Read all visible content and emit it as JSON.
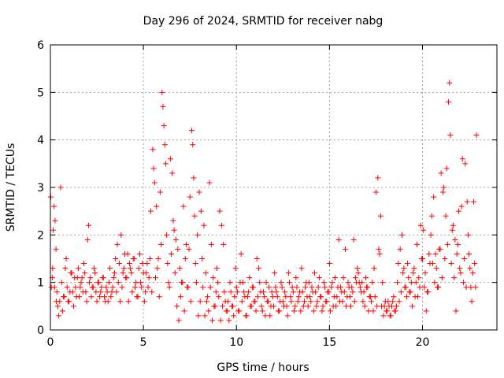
{
  "chart_data": {
    "type": "scatter",
    "title": "Day 296 of 2024, SRMTID for receiver nabg",
    "xlabel": "GPS time / hours",
    "ylabel": "SRMTID / TECUs",
    "xlim": [
      0,
      24
    ],
    "ylim": [
      0,
      6
    ],
    "xticks": [
      0,
      5,
      10,
      15,
      20
    ],
    "yticks": [
      0,
      1,
      2,
      3,
      4,
      5,
      6
    ],
    "grid": true,
    "marker": "+",
    "color": "#ff0000",
    "series": [
      {
        "name": "SRMTID",
        "x": [
          0.05,
          0.1,
          0.15,
          0.2,
          0.25,
          0.3,
          0.35,
          0.4,
          0.5,
          0.6,
          0.7,
          0.8,
          0.9,
          1.0,
          1.1,
          1.2,
          1.3,
          1.4,
          1.5,
          1.6,
          1.7,
          1.8,
          1.9,
          2.0,
          2.05,
          2.1,
          2.2,
          2.3,
          2.4,
          2.5,
          2.6,
          2.7,
          2.8,
          2.9,
          3.0,
          3.1,
          3.2,
          3.3,
          3.4,
          3.5,
          3.6,
          3.7,
          3.8,
          3.9,
          4.0,
          4.1,
          4.2,
          4.3,
          4.4,
          4.5,
          4.6,
          4.7,
          4.8,
          4.9,
          5.0,
          5.1,
          5.2,
          5.3,
          5.4,
          5.5,
          5.55,
          5.6,
          5.7,
          5.8,
          5.9,
          6.0,
          6.05,
          6.1,
          6.15,
          6.2,
          6.25,
          6.3,
          6.4,
          6.5,
          6.6,
          6.7,
          6.8,
          6.9,
          7.0,
          7.1,
          7.2,
          7.3,
          7.4,
          7.5,
          7.6,
          7.65,
          7.7,
          7.75,
          7.8,
          7.9,
          8.0,
          8.1,
          8.2,
          8.3,
          8.4,
          8.5,
          8.6,
          8.7,
          8.8,
          8.9,
          9.0,
          9.1,
          9.2,
          9.3,
          9.4,
          9.5,
          9.6,
          9.7,
          9.8,
          9.9,
          10.0,
          10.1,
          10.2,
          10.3,
          10.4,
          10.5,
          10.6,
          10.7,
          10.8,
          10.9,
          11.0,
          11.1,
          11.2,
          11.3,
          11.4,
          11.5,
          11.6,
          11.7,
          11.8,
          11.9,
          12.0,
          12.1,
          12.2,
          12.3,
          12.4,
          12.5,
          12.6,
          12.7,
          12.8,
          12.9,
          13.0,
          13.1,
          13.2,
          13.3,
          13.4,
          13.5,
          13.6,
          13.7,
          13.8,
          13.9,
          14.0,
          14.1,
          14.2,
          14.3,
          14.4,
          14.5,
          14.6,
          14.7,
          14.8,
          14.9,
          15.0,
          15.1,
          15.2,
          15.3,
          15.4,
          15.5,
          15.6,
          15.7,
          15.8,
          15.9,
          16.0,
          16.1,
          16.2,
          16.3,
          16.4,
          16.5,
          16.6,
          16.7,
          16.8,
          16.9,
          17.0,
          17.1,
          17.2,
          17.3,
          17.4,
          17.5,
          17.6,
          17.7,
          17.8,
          17.9,
          18.0,
          18.1,
          18.2,
          18.3,
          18.4,
          18.5,
          18.6,
          18.7,
          18.8,
          18.9,
          19.0,
          19.1,
          19.2,
          19.3,
          19.4,
          19.5,
          19.6,
          19.7,
          19.8,
          19.9,
          20.0,
          20.1,
          20.2,
          20.3,
          20.4,
          20.5,
          20.6,
          20.7,
          20.8,
          20.9,
          21.0,
          21.1,
          21.2,
          21.3,
          21.4,
          21.45,
          21.5,
          21.6,
          21.7,
          21.8,
          21.9,
          22.0,
          22.1,
          22.2,
          22.3,
          22.4,
          22.5,
          22.6,
          22.7,
          22.8,
          22.9,
          0.02,
          0.12,
          0.22,
          0.32,
          0.45,
          0.55,
          0.65,
          0.75,
          0.85,
          0.95,
          1.05,
          1.15,
          1.25,
          1.35,
          1.45,
          1.55,
          1.65,
          1.75,
          1.85,
          1.95,
          2.15,
          2.25,
          2.35,
          2.45,
          2.55,
          2.65,
          2.75,
          2.85,
          2.95,
          3.05,
          3.15,
          3.25,
          3.35,
          3.45,
          3.55,
          3.65,
          3.75,
          3.85,
          3.95,
          4.05,
          4.15,
          4.25,
          4.35,
          4.45,
          4.55,
          4.65,
          4.75,
          4.85,
          4.95,
          5.05,
          5.15,
          5.25,
          5.35,
          5.45,
          5.65,
          5.75,
          5.85,
          5.95,
          6.35,
          6.45,
          6.55,
          6.65,
          6.75,
          6.85,
          6.95,
          7.05,
          7.15,
          7.25,
          7.35,
          7.45,
          7.55,
          7.85,
          7.95,
          8.05,
          8.15,
          8.25,
          8.35,
          8.45,
          8.55,
          8.65,
          8.75,
          8.85,
          8.95,
          9.05,
          9.15,
          9.25,
          9.35,
          9.45,
          9.55,
          9.65,
          9.75,
          9.85,
          9.95,
          10.05,
          10.15,
          10.25,
          10.35,
          10.45,
          10.55,
          10.65,
          10.75,
          10.85,
          10.95,
          11.05,
          11.15,
          11.25,
          11.35,
          11.45,
          11.55,
          11.65,
          11.75,
          11.85,
          11.95,
          12.05,
          12.15,
          12.25,
          12.35,
          12.45,
          12.55,
          12.65,
          12.75,
          12.85,
          12.95,
          13.05,
          13.15,
          13.25,
          13.35,
          13.45,
          13.55,
          13.65,
          13.75,
          13.85,
          13.95,
          14.05,
          14.15,
          14.25,
          14.35,
          14.45,
          14.55,
          14.65,
          14.75,
          14.85,
          14.95,
          15.05,
          15.15,
          15.25,
          15.35,
          15.45,
          15.55,
          15.65,
          15.75,
          15.85,
          15.95,
          16.05,
          16.15,
          16.25,
          16.35,
          16.45,
          16.55,
          16.65,
          16.75,
          16.85,
          16.95,
          17.05,
          17.15,
          17.25,
          17.35,
          17.45,
          17.55,
          17.65,
          17.75,
          17.85,
          17.95,
          18.05,
          18.15,
          18.25,
          18.35,
          18.45,
          18.55,
          18.65,
          18.75,
          18.85,
          18.95,
          19.05,
          19.15,
          19.25,
          19.35,
          19.45,
          19.55,
          19.65,
          19.75,
          19.85,
          19.95,
          20.05,
          20.15,
          20.25,
          20.35,
          20.45,
          20.55,
          20.65,
          20.75,
          20.85,
          20.95,
          21.05,
          21.15,
          21.25,
          21.35,
          21.55,
          21.65,
          21.75,
          21.85,
          21.95,
          22.05,
          22.15,
          22.25,
          22.35,
          22.45,
          22.55,
          22.65,
          22.75,
          22.85
        ],
        "y": [
          0.9,
          1.1,
          2.1,
          2.6,
          2.3,
          1.7,
          0.8,
          0.5,
          0.6,
          1.0,
          0.7,
          1.3,
          0.9,
          0.6,
          1.2,
          0.8,
          1.1,
          0.7,
          1.3,
          0.9,
          1.1,
          1.4,
          0.8,
          1.9,
          2.2,
          1.0,
          0.7,
          0.9,
          1.2,
          0.6,
          1.0,
          0.8,
          1.1,
          0.7,
          0.9,
          0.6,
          1.3,
          0.8,
          1.1,
          1.5,
          1.8,
          1.4,
          2.0,
          1.2,
          1.6,
          1.1,
          0.6,
          1.3,
          0.8,
          1.5,
          1.0,
          0.7,
          1.6,
          0.9,
          1.2,
          0.8,
          1.4,
          1.1,
          2.5,
          3.8,
          3.4,
          3.1,
          2.6,
          1.5,
          2.9,
          5.0,
          4.7,
          4.3,
          3.9,
          3.5,
          2.0,
          1.4,
          0.9,
          1.6,
          2.3,
          1.2,
          0.5,
          0.2,
          0.7,
          1.0,
          0.4,
          1.8,
          0.9,
          2.8,
          4.2,
          3.9,
          3.2,
          2.4,
          1.4,
          2.0,
          2.9,
          2.5,
          0.9,
          0.3,
          0.6,
          0.4,
          0.9,
          0.2,
          0.5,
          0.8,
          1.0,
          2.5,
          2.2,
          1.8,
          0.6,
          0.4,
          0.2,
          0.8,
          0.5,
          0.7,
          0.9,
          0.4,
          1.0,
          0.6,
          0.8,
          0.3,
          0.7,
          1.1,
          0.5,
          0.9,
          0.6,
          1.5,
          1.3,
          0.8,
          0.4,
          0.7,
          1.0,
          0.6,
          0.3,
          0.8,
          0.5,
          0.9,
          0.7,
          0.4,
          1.0,
          0.6,
          0.8,
          0.5,
          1.2,
          0.7,
          0.9,
          0.4,
          1.1,
          0.6,
          0.8,
          1.3,
          0.5,
          0.9,
          0.7,
          1.0,
          0.6,
          0.8,
          1.2,
          0.5,
          0.9,
          0.7,
          0.4,
          1.0,
          0.6,
          0.8,
          1.4,
          0.9,
          0.5,
          1.1,
          0.7,
          1.9,
          0.9,
          0.6,
          0.8,
          0.5,
          1.0,
          0.7,
          0.9,
          1.9,
          1.1,
          1.3,
          1.0,
          0.8,
          0.6,
          0.5,
          0.9,
          0.4,
          0.7,
          1.0,
          1.3,
          2.9,
          3.2,
          1.6,
          0.5,
          0.3,
          0.6,
          0.4,
          0.5,
          0.3,
          0.6,
          0.4,
          0.5,
          1.4,
          1.7,
          2.0,
          1.3,
          0.9,
          1.4,
          0.8,
          1.0,
          1.2,
          0.7,
          1.8,
          1.1,
          2.2,
          1.5,
          0.9,
          0.4,
          0.8,
          1.4,
          2.4,
          2.8,
          1.6,
          0.9,
          1.7,
          3.3,
          2.9,
          1.5,
          3.4,
          4.8,
          5.2,
          4.1,
          2.1,
          1.1,
          0.4,
          1.8,
          1.3,
          2.6,
          1.0,
          3.5,
          2.7,
          1.6,
          0.9,
          1.2,
          1.4,
          4.1,
          2.8,
          1.3,
          0.9,
          0.6,
          0.3,
          3.0,
          0.4,
          0.7,
          1.5,
          0.6,
          0.8,
          1.2,
          0.5,
          0.9,
          1.1,
          0.7,
          1.0,
          0.8,
          1.2,
          0.6,
          1.1,
          0.9,
          1.3,
          0.8,
          1.0,
          0.7,
          0.9,
          1.1,
          0.6,
          0.8,
          1.0,
          0.7,
          0.9,
          1.2,
          0.8,
          1.0,
          0.6,
          0.9,
          1.3,
          1.1,
          1.6,
          1.4,
          1.2,
          1.5,
          0.9,
          0.7,
          1.3,
          1.0,
          1.4,
          0.6,
          1.2,
          0.9,
          1.5,
          0.8,
          1.1,
          1.3,
          0.7,
          1.8,
          1.0,
          3.6,
          3.3,
          2.1,
          1.9,
          1.7,
          1.3,
          1.0,
          2.6,
          1.5,
          0.9,
          1.7,
          0.6,
          1.0,
          0.3,
          0.6,
          1.5,
          2.2,
          1.2,
          0.7,
          3.1,
          1.8,
          1.1,
          0.5,
          1.3,
          0.7,
          0.2,
          0.5,
          0.8,
          0.4,
          0.6,
          1.0,
          0.5,
          0.3,
          1.3,
          0.8,
          0.4,
          1.6,
          1.0,
          0.7,
          0.3,
          0.8,
          0.5,
          0.9,
          0.6,
          0.4,
          0.7,
          1.0,
          0.5,
          0.8,
          0.3,
          0.6,
          0.9,
          0.5,
          0.7,
          1.2,
          0.8,
          0.4,
          0.6,
          0.9,
          0.5,
          0.7,
          0.3,
          1.0,
          0.6,
          0.8,
          0.5,
          0.9,
          0.7,
          0.4,
          0.8,
          0.6,
          1.0,
          0.5,
          0.7,
          0.9,
          0.4,
          0.8,
          0.6,
          1.1,
          0.7,
          0.5,
          0.9,
          0.6,
          0.8,
          0.4,
          1.0,
          0.7,
          0.5,
          0.9,
          0.6,
          0.8,
          1.1,
          1.7,
          0.7,
          0.9,
          0.5,
          0.8,
          0.6,
          1.0,
          1.2,
          0.9,
          1.0,
          0.8,
          1.1,
          0.9,
          0.7,
          0.6,
          0.4,
          0.7,
          0.5,
          1.7,
          2.4,
          1.0,
          0.5,
          0.4,
          0.6,
          0.3,
          0.5,
          0.7,
          0.4,
          1.0,
          0.6,
          0.8,
          1.2,
          0.9,
          0.7,
          1.1,
          0.8,
          0.5,
          1.3,
          1.0,
          0.7,
          0.9,
          1.5,
          2.1,
          1.2,
          0.8,
          1.6,
          2.0,
          1.4,
          1.0,
          1.3,
          0.9,
          1.7,
          1.1,
          3.0,
          2.4,
          1.8,
          1.4,
          2.2,
          1.9,
          1.6,
          2.5,
          1.2,
          3.6,
          1.5,
          0.9,
          2.0,
          1.3,
          0.6,
          2.7,
          0.9
        ]
      }
    ]
  }
}
